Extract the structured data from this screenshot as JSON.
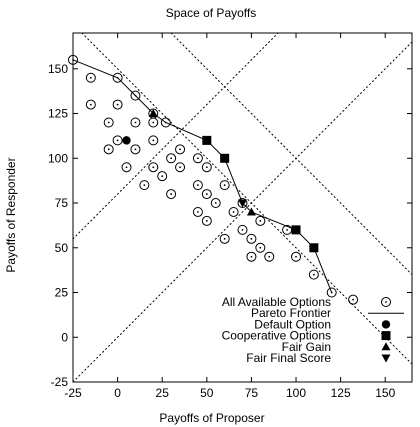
{
  "chart_data": {
    "type": "scatter",
    "title": "Space of Payoffs",
    "xlabel": "Payoffs of Proposer",
    "ylabel": "Payoffs of Responder",
    "xlim": [
      -25,
      165
    ],
    "ylim": [
      -25,
      170
    ],
    "xticks": [
      -25,
      0,
      25,
      50,
      75,
      100,
      125,
      150
    ],
    "yticks": [
      -25,
      0,
      25,
      50,
      75,
      100,
      125,
      150
    ],
    "grid": false,
    "legend_position": "bottom-right",
    "reference_lines": [
      {
        "name": "y = x",
        "style": "dotted",
        "points": [
          [
            -25,
            -25
          ],
          [
            170,
            170
          ]
        ]
      },
      {
        "name": "y = x + 80",
        "style": "dotted",
        "points": [
          [
            -25,
            55
          ],
          [
            90,
            170
          ]
        ]
      },
      {
        "name": "x + y = 150",
        "style": "dotted",
        "points": [
          [
            -20,
            170
          ],
          [
            165,
            -15
          ]
        ]
      },
      {
        "name": "x + y = 200",
        "style": "dotted",
        "points": [
          [
            30,
            170
          ],
          [
            165,
            35
          ]
        ]
      }
    ],
    "series": [
      {
        "name": "All Available Options",
        "marker": "circle-dot",
        "points": [
          [
            -25,
            155
          ],
          [
            -15,
            145
          ],
          [
            0,
            145
          ],
          [
            10,
            135
          ],
          [
            20,
            125
          ],
          [
            27,
            120
          ],
          [
            -15,
            130
          ],
          [
            -5,
            120
          ],
          [
            0,
            130
          ],
          [
            -5,
            105
          ],
          [
            10,
            120
          ],
          [
            20,
            120
          ],
          [
            0,
            110
          ],
          [
            5,
            95
          ],
          [
            10,
            105
          ],
          [
            15,
            85
          ],
          [
            20,
            110
          ],
          [
            20,
            95
          ],
          [
            25,
            90
          ],
          [
            30,
            100
          ],
          [
            30,
            80
          ],
          [
            35,
            95
          ],
          [
            35,
            105
          ],
          [
            45,
            100
          ],
          [
            45,
            85
          ],
          [
            45,
            70
          ],
          [
            50,
            80
          ],
          [
            50,
            95
          ],
          [
            50,
            65
          ],
          [
            55,
            75
          ],
          [
            60,
            85
          ],
          [
            60,
            55
          ],
          [
            65,
            70
          ],
          [
            70,
            75
          ],
          [
            70,
            60
          ],
          [
            75,
            55
          ],
          [
            75,
            45
          ],
          [
            80,
            65
          ],
          [
            80,
            50
          ],
          [
            85,
            45
          ],
          [
            95,
            60
          ],
          [
            100,
            45
          ],
          [
            110,
            35
          ],
          [
            120,
            25
          ],
          [
            132,
            21
          ]
        ]
      },
      {
        "name": "Pareto Frontier",
        "marker": "line",
        "points": [
          [
            -25,
            155
          ],
          [
            0,
            145
          ],
          [
            10,
            135
          ],
          [
            20,
            125
          ],
          [
            27,
            120
          ],
          [
            50,
            110
          ],
          [
            60,
            100
          ],
          [
            70,
            75
          ],
          [
            75,
            70
          ],
          [
            100,
            60
          ],
          [
            110,
            50
          ],
          [
            120,
            25
          ]
        ]
      },
      {
        "name": "Default Option",
        "marker": "filled-circle",
        "points": [
          [
            5,
            110
          ]
        ]
      },
      {
        "name": "Cooperative Options",
        "marker": "filled-square",
        "points": [
          [
            50,
            110
          ],
          [
            60,
            100
          ],
          [
            100,
            60
          ],
          [
            110,
            50
          ]
        ]
      },
      {
        "name": "Fair Gain",
        "marker": "filled-triangle-up",
        "points": [
          [
            20,
            125
          ],
          [
            75,
            70
          ]
        ]
      },
      {
        "name": "Fair Final Score",
        "marker": "filled-triangle-down",
        "points": [
          [
            70,
            75
          ]
        ]
      }
    ]
  }
}
